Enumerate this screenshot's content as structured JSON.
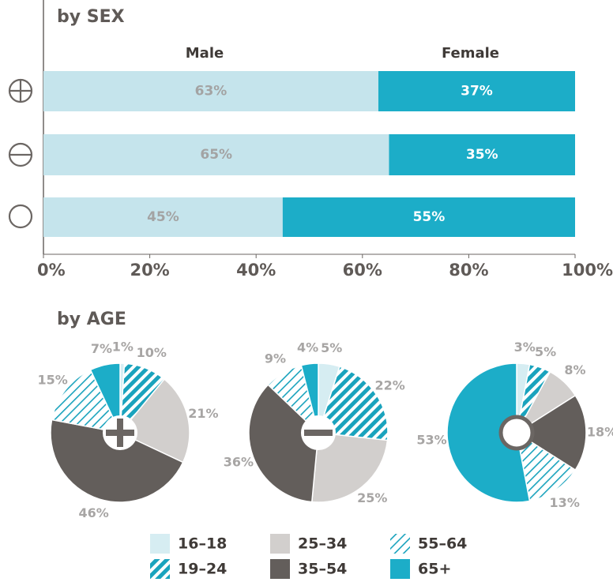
{
  "chart_data": [
    {
      "type": "stacked-barh",
      "title": "by SEX",
      "categories": [
        null,
        null,
        null
      ],
      "series": [
        {
          "name": "Male",
          "color": "#c5e4ec",
          "label_color": "#a3a3a3",
          "values": [
            63,
            65,
            45
          ],
          "value_labels": [
            "63%",
            "65%",
            "45%"
          ]
        },
        {
          "name": "Female",
          "color": "#1cadc8",
          "label_color": "#ffffff",
          "values": [
            37,
            35,
            55
          ],
          "value_labels": [
            "37%",
            "35%",
            "55%"
          ]
        }
      ],
      "xlim": [
        0,
        100
      ],
      "xticks": [
        {
          "value": 0,
          "label": "0%"
        },
        {
          "value": 20,
          "label": "20%"
        },
        {
          "value": 40,
          "label": "40%"
        },
        {
          "value": 60,
          "label": "60%"
        },
        {
          "value": 80,
          "label": "80%"
        },
        {
          "value": 100,
          "label": "100%"
        }
      ]
    },
    {
      "type": "pie",
      "title": "by AGE",
      "categories": [
        "16–18",
        "19–24",
        "25–34",
        "35–54",
        "55–64",
        "65+"
      ],
      "colors": [
        "#d6edf2",
        "#1aa3bd",
        "#d2cfcd",
        "#635e5b",
        "#1aa3bd",
        "#1cadc8"
      ],
      "hatch": [
        "none",
        "dense",
        "none",
        "none",
        "thin",
        "none"
      ],
      "values": [
        1,
        10,
        21,
        46,
        15,
        7
      ],
      "value_labels": [
        "1%",
        "10%",
        "21%",
        "46%",
        "15%",
        "7%"
      ]
    },
    {
      "type": "pie",
      "categories": [
        "16–18",
        "19–24",
        "25–34",
        "35–54",
        "55–64",
        "65+"
      ],
      "colors": [
        "#d6edf2",
        "#1aa3bd",
        "#d2cfcd",
        "#635e5b",
        "#1aa3bd",
        "#1cadc8"
      ],
      "hatch": [
        "none",
        "dense",
        "none",
        "none",
        "thin",
        "none"
      ],
      "values": [
        5,
        22,
        25,
        36,
        9,
        4
      ],
      "value_labels": [
        "5%",
        "22%",
        "25%",
        "36%",
        "9%",
        "4%"
      ]
    },
    {
      "type": "pie",
      "categories": [
        "16–18",
        "19–24",
        "25–34",
        "35–54",
        "55–64",
        "65+"
      ],
      "colors": [
        "#d6edf2",
        "#1aa3bd",
        "#d2cfcd",
        "#635e5b",
        "#1aa3bd",
        "#1cadc8"
      ],
      "hatch": [
        "none",
        "dense",
        "none",
        "none",
        "thin",
        "none"
      ],
      "values": [
        3,
        5,
        8,
        18,
        13,
        53
      ],
      "value_labels": [
        "3%",
        "5%",
        "8%",
        "18%",
        "13%",
        "53%"
      ]
    }
  ]
}
